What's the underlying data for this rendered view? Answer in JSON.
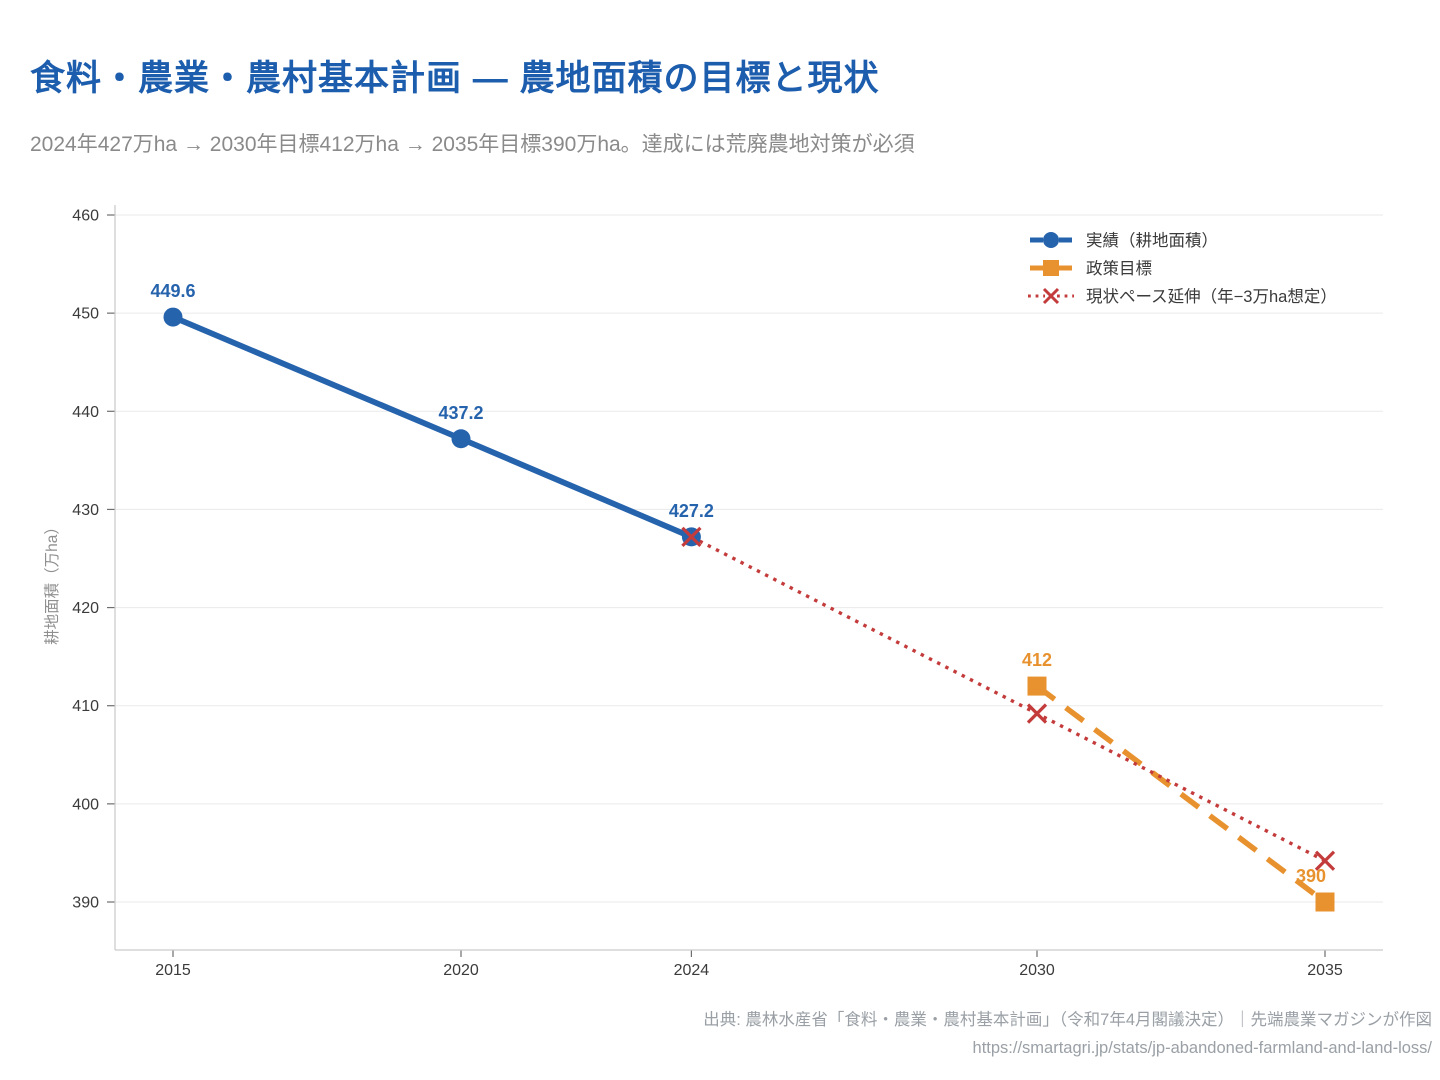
{
  "page": {
    "title": "食料・農業・農村基本計画 — 農地面積の目標と現状",
    "subtitle": "2024年427万ha → 2030年目標412万ha → 2035年目標390万ha。達成には荒廃農地対策が必須",
    "source_line1": "出典: 農林水産省「食料・農業・農村基本計画」（令和7年4月閣議決定）｜先端農業マガジンが作図",
    "source_line2": "https://smartagri.jp/stats/jp-abandoned-farmland-and-land-loss/"
  },
  "colors": {
    "title": "#1D5DAD",
    "actual": "#2663AD",
    "target": "#E8922F",
    "pace": "#C43B3B",
    "grid_line": "#EAEAEA",
    "axis_line": "#C9C9C9",
    "tick_mark": "#6E6E6E",
    "tick_text": "#3B3B3B",
    "legend_text": "#3A3A3A",
    "axis_label_text": "#8F8F8F",
    "subtitle_text": "#8A8A8A",
    "footer_text": "#9AA0A6"
  },
  "chart_data": {
    "type": "line",
    "title": "",
    "xlabel": "",
    "ylabel": "耕地面積（万ha）",
    "x_ticks": [
      2015,
      2020,
      2024,
      2030,
      2035
    ],
    "x_tick_labels": [
      "2015",
      "2020",
      "2024",
      "2030",
      "2035"
    ],
    "y_ticks": [
      390,
      400,
      410,
      420,
      430,
      440,
      450,
      460
    ],
    "xlim": [
      2014,
      2036
    ],
    "ylim": [
      385,
      461
    ],
    "grid": "horizontal",
    "legend_position": "top-right",
    "series": [
      {
        "name": "実績（耕地面積）",
        "color": "#2663AD",
        "line_style": "solid",
        "marker": "circle",
        "x": [
          2015,
          2020,
          2024
        ],
        "y": [
          449.6,
          437.2,
          427.2
        ],
        "labels": [
          "449.6",
          "437.2",
          "427.2"
        ]
      },
      {
        "name": "政策目標",
        "color": "#E8922F",
        "line_style": "dashed",
        "marker": "square",
        "x": [
          2030,
          2035
        ],
        "y": [
          412,
          390
        ],
        "labels": [
          "412",
          "390"
        ]
      },
      {
        "name": "現状ペース延伸（年−3万ha想定）",
        "color": "#C43B3B",
        "line_style": "dotted",
        "marker": "x",
        "x": [
          2024,
          2030,
          2035
        ],
        "y": [
          427.2,
          409.2,
          394.2
        ],
        "labels": [
          "",
          "",
          ""
        ]
      }
    ]
  }
}
